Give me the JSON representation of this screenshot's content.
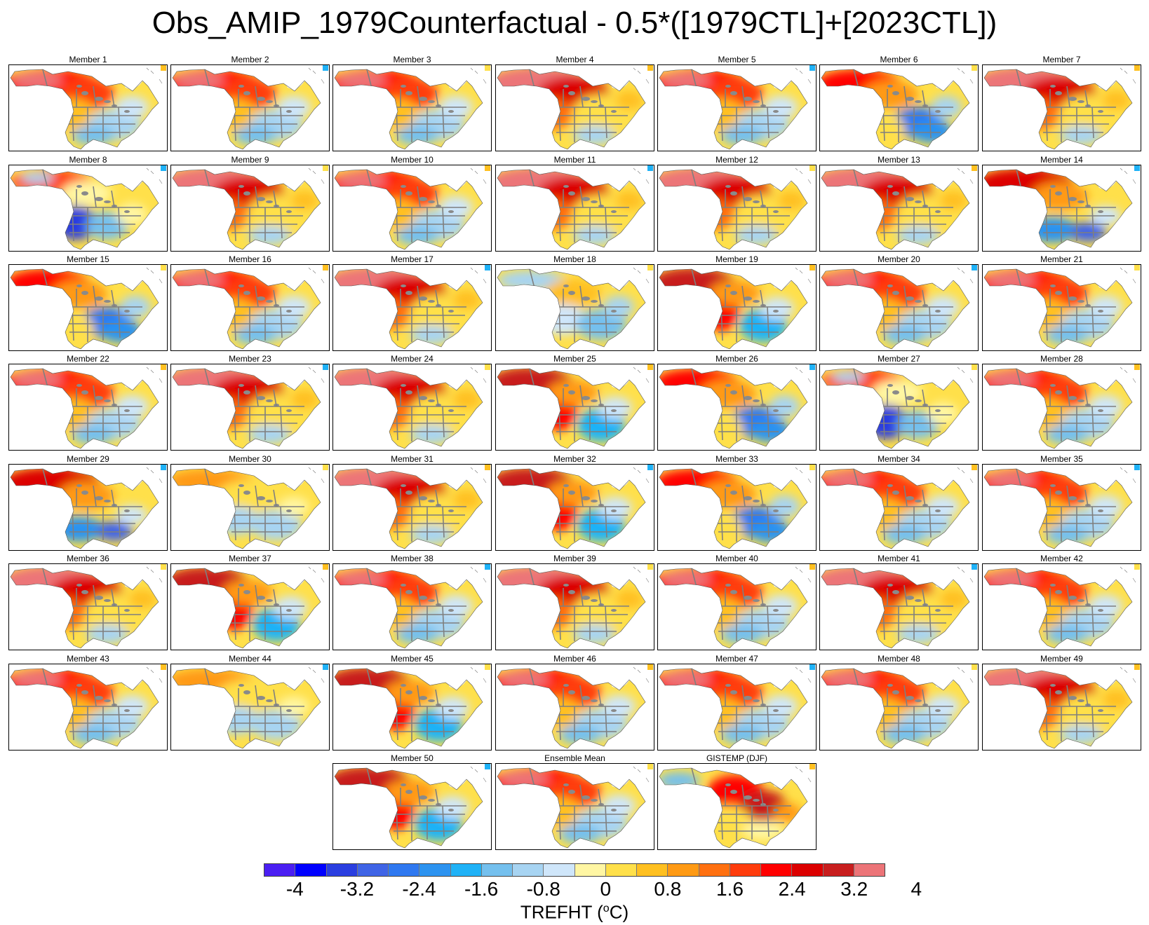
{
  "title": "Obs_AMIP_1979Counterfactual - 0.5*([1979CTL]+[2023CTL])",
  "colorbar": {
    "label_prefix": "TREFHT (",
    "label_sup": "o",
    "label_suffix": "C)",
    "ticks": [
      "-4",
      "-3.2",
      "-2.4",
      "-1.6",
      "-0.8",
      "0",
      "0.8",
      "1.6",
      "2.4",
      "3.2",
      "4"
    ],
    "colors": [
      "#4a1ef2",
      "#0000ff",
      "#2a3ee0",
      "#3f64e6",
      "#2f78f0",
      "#2c93f0",
      "#1fb2f7",
      "#74c0ee",
      "#a7d4f2",
      "#cfe6fa",
      "#fff6a3",
      "#ffe04a",
      "#ffc020",
      "#ff9a14",
      "#ff7010",
      "#ff3c0c",
      "#ff0000",
      "#dc0000",
      "#c81e1e",
      "#ec7478"
    ]
  },
  "panels": [
    {
      "label": "Member 1",
      "pattern": "warm_north"
    },
    {
      "label": "Member 2",
      "pattern": "warm_north"
    },
    {
      "label": "Member 3",
      "pattern": "warm_north"
    },
    {
      "label": "Member 4",
      "pattern": "strong_warm"
    },
    {
      "label": "Member 5",
      "pattern": "warm_north"
    },
    {
      "label": "Member 6",
      "pattern": "cold_east"
    },
    {
      "label": "Member 7",
      "pattern": "strong_warm"
    },
    {
      "label": "Member 8",
      "pattern": "cold_west"
    },
    {
      "label": "Member 9",
      "pattern": "strong_warm"
    },
    {
      "label": "Member 10",
      "pattern": "warm_north"
    },
    {
      "label": "Member 11",
      "pattern": "strong_warm"
    },
    {
      "label": "Member 12",
      "pattern": "strong_warm"
    },
    {
      "label": "Member 13",
      "pattern": "strong_warm"
    },
    {
      "label": "Member 14",
      "pattern": "cold_south"
    },
    {
      "label": "Member 15",
      "pattern": "cold_east"
    },
    {
      "label": "Member 16",
      "pattern": "warm_north"
    },
    {
      "label": "Member 17",
      "pattern": "strong_warm"
    },
    {
      "label": "Member 18",
      "pattern": "cool"
    },
    {
      "label": "Member 19",
      "pattern": "warm_west"
    },
    {
      "label": "Member 20",
      "pattern": "warm_north"
    },
    {
      "label": "Member 21",
      "pattern": "warm_north"
    },
    {
      "label": "Member 22",
      "pattern": "warm_north"
    },
    {
      "label": "Member 23",
      "pattern": "strong_warm"
    },
    {
      "label": "Member 24",
      "pattern": "strong_warm"
    },
    {
      "label": "Member 25",
      "pattern": "warm_west"
    },
    {
      "label": "Member 26",
      "pattern": "cold_east"
    },
    {
      "label": "Member 27",
      "pattern": "cold_west"
    },
    {
      "label": "Member 28",
      "pattern": "warm_north"
    },
    {
      "label": "Member 29",
      "pattern": "cold_south"
    },
    {
      "label": "Member 30",
      "pattern": "mild"
    },
    {
      "label": "Member 31",
      "pattern": "strong_warm"
    },
    {
      "label": "Member 32",
      "pattern": "warm_west"
    },
    {
      "label": "Member 33",
      "pattern": "cold_east"
    },
    {
      "label": "Member 34",
      "pattern": "warm_north"
    },
    {
      "label": "Member 35",
      "pattern": "warm_north"
    },
    {
      "label": "Member 36",
      "pattern": "strong_warm"
    },
    {
      "label": "Member 37",
      "pattern": "warm_west"
    },
    {
      "label": "Member 38",
      "pattern": "warm_north"
    },
    {
      "label": "Member 39",
      "pattern": "strong_warm"
    },
    {
      "label": "Member 40",
      "pattern": "warm_north"
    },
    {
      "label": "Member 41",
      "pattern": "strong_warm"
    },
    {
      "label": "Member 42",
      "pattern": "warm_north"
    },
    {
      "label": "Member 43",
      "pattern": "warm_north"
    },
    {
      "label": "Member 44",
      "pattern": "mild"
    },
    {
      "label": "Member 45",
      "pattern": "warm_west"
    },
    {
      "label": "Member 46",
      "pattern": "warm_north"
    },
    {
      "label": "Member 47",
      "pattern": "warm_north"
    },
    {
      "label": "Member 48",
      "pattern": "warm_north"
    },
    {
      "label": "Member 49",
      "pattern": "strong_warm"
    },
    {
      "label": "Member 50",
      "pattern": "warm_west"
    },
    {
      "label": "Ensemble Mean",
      "pattern": "warm_north"
    },
    {
      "label": "GISTEMP (DJF)",
      "pattern": "obs"
    }
  ]
}
